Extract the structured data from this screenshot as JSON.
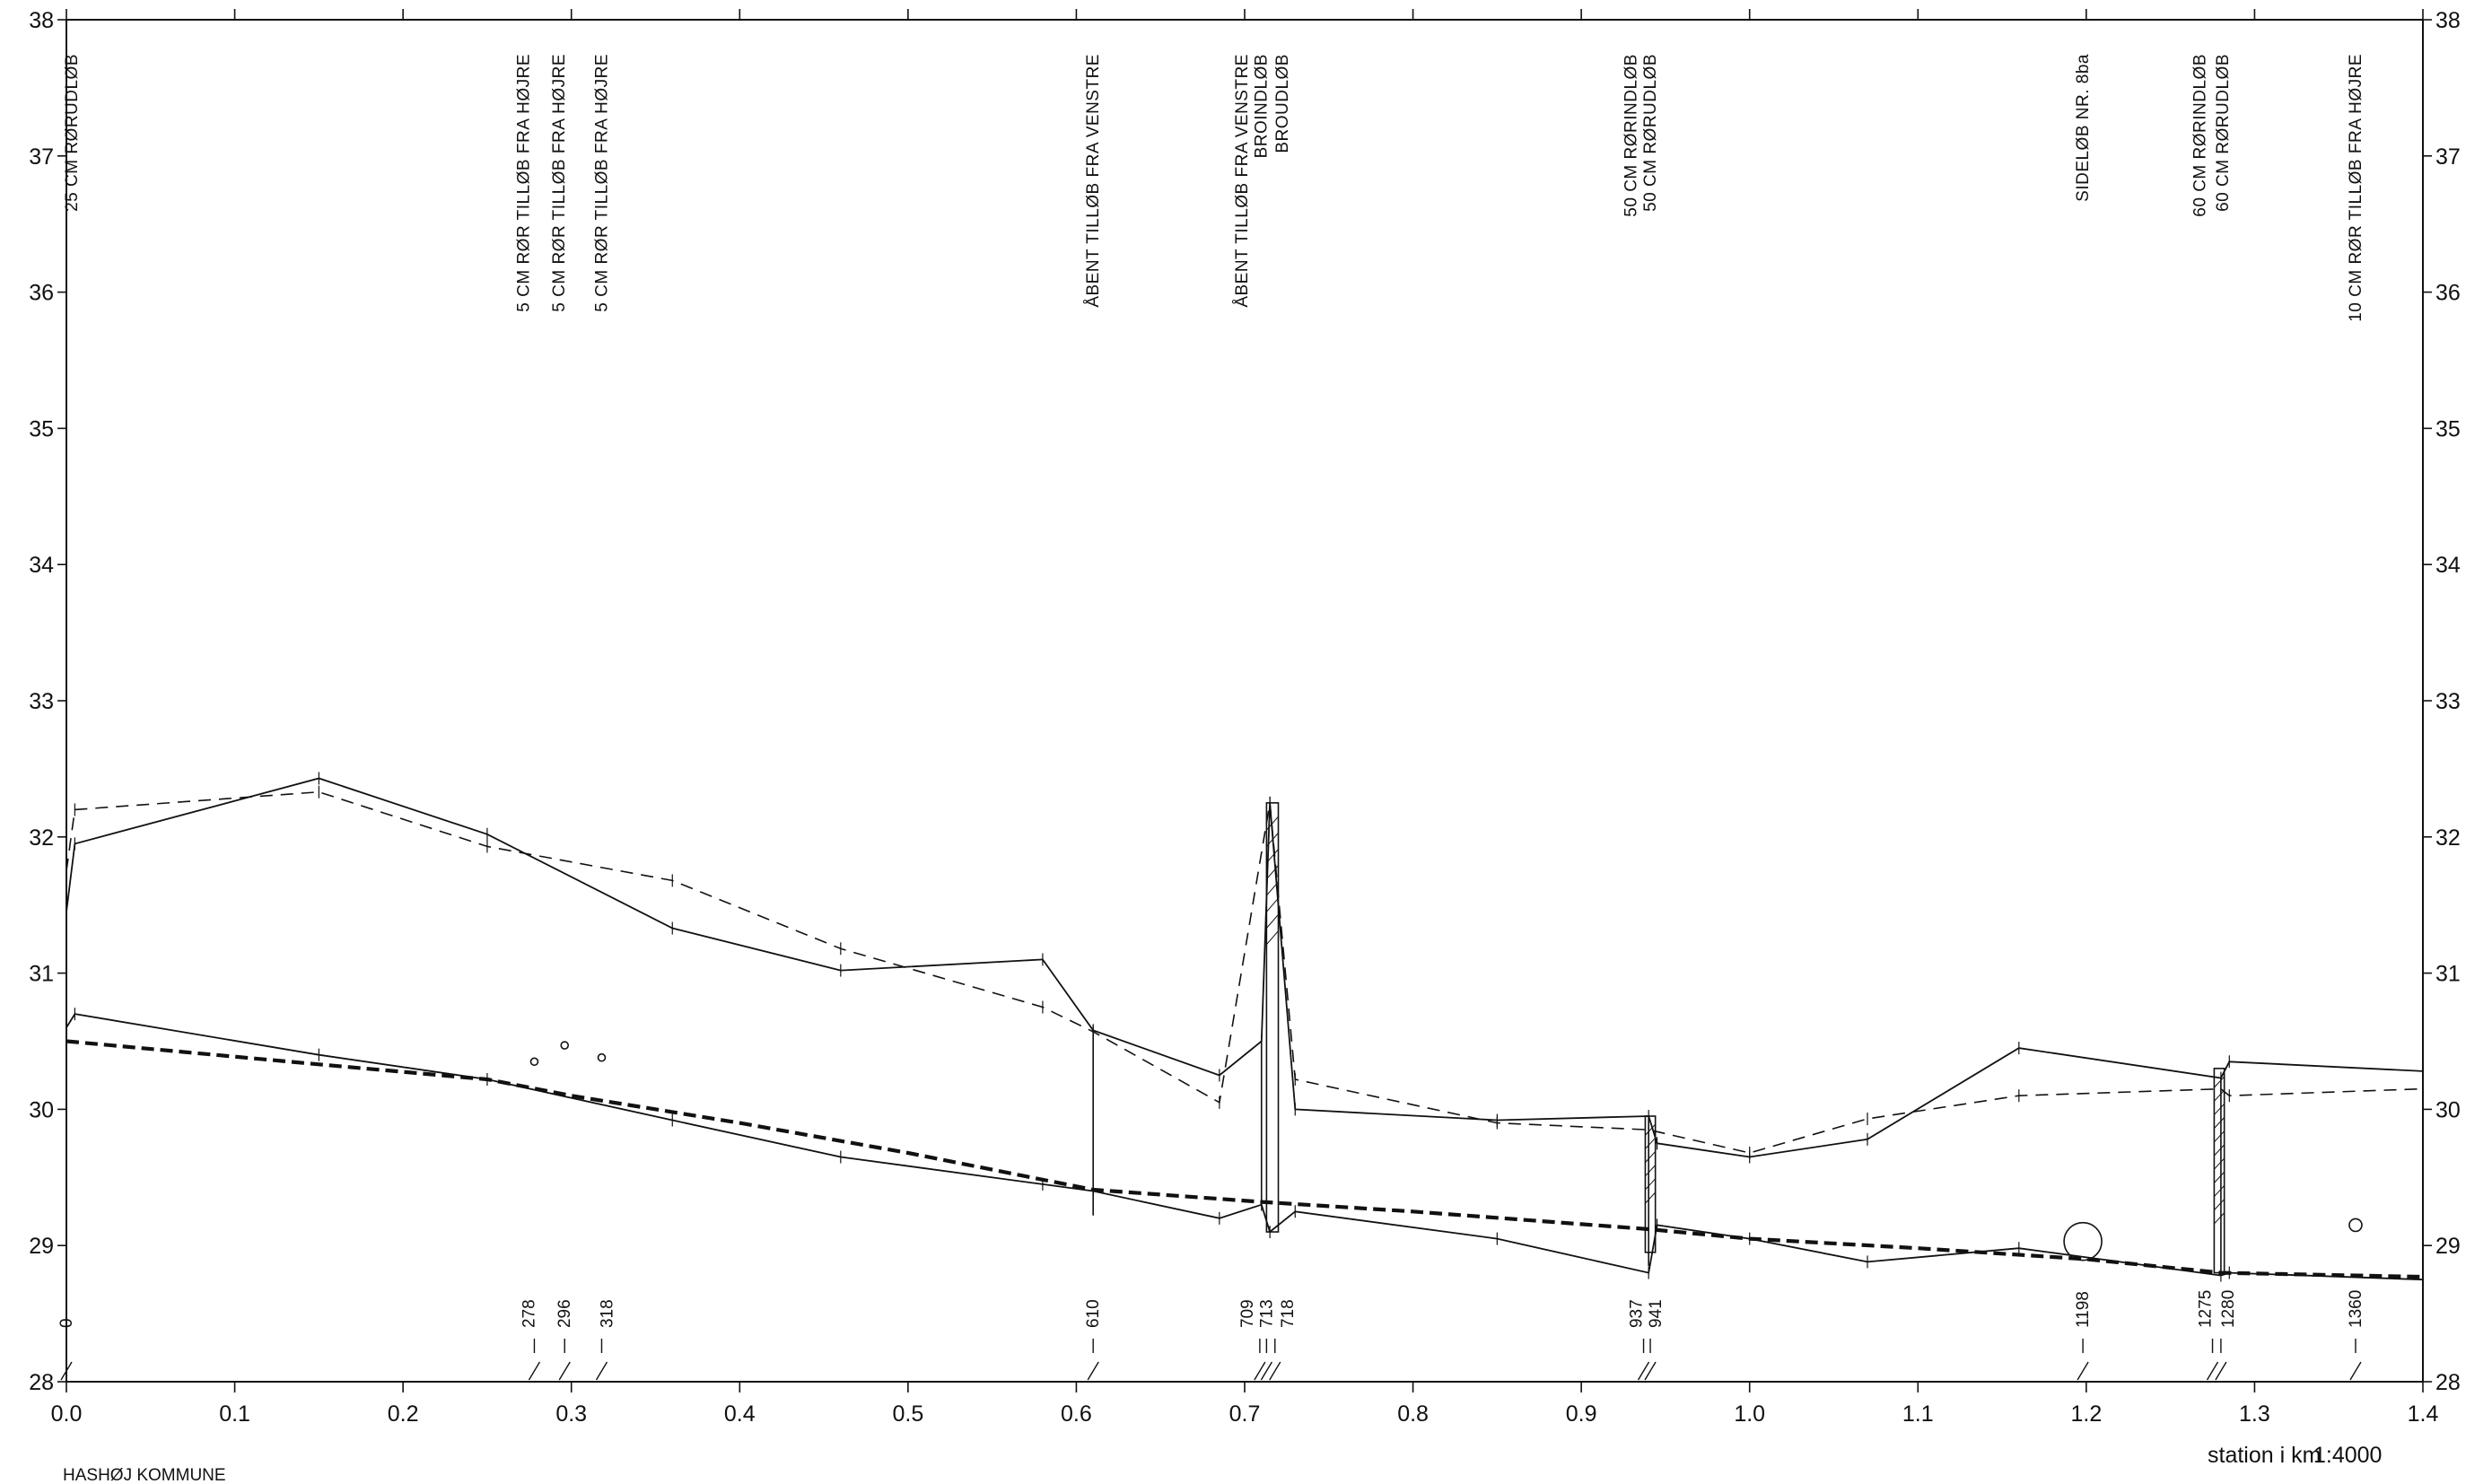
{
  "chart_data": {
    "type": "line",
    "scale": "1:4000",
    "xlabel": "station i km",
    "footer_text": "HASHØJ KOMMUNE",
    "xlim": [
      0.0,
      1.4
    ],
    "ylim": [
      28,
      38
    ],
    "x_ticks": [
      0.0,
      0.1,
      0.2,
      0.3,
      0.4,
      0.5,
      0.6,
      0.7,
      0.8,
      0.9,
      1.0,
      1.1,
      1.2,
      1.3,
      1.4
    ],
    "x_tick_labels": [
      "0.0",
      "0.1",
      "0.2",
      "0.3",
      "0.4",
      "0.5",
      "0.6",
      "0.7",
      "0.8",
      "0.9",
      "1.0",
      "1.1",
      "1.2",
      "1.3",
      "1.4"
    ],
    "y_ticks": [
      28,
      29,
      30,
      31,
      32,
      33,
      34,
      35,
      36,
      37,
      38
    ],
    "y_tick_labels": [
      "28",
      "29",
      "30",
      "31",
      "32",
      "33",
      "34",
      "35",
      "36",
      "37",
      "38"
    ],
    "series": [
      {
        "style": "solid",
        "values": [
          [
            0.0,
            31.45
          ],
          [
            0.005,
            31.95
          ],
          [
            0.15,
            32.43
          ],
          [
            0.25,
            32.02
          ],
          [
            0.36,
            31.33
          ],
          [
            0.46,
            31.02
          ],
          [
            0.58,
            31.1
          ],
          [
            0.61,
            30.58
          ],
          [
            0.685,
            30.25
          ],
          [
            0.71,
            30.5
          ],
          [
            0.715,
            32.25
          ],
          [
            0.73,
            30.0
          ],
          [
            0.85,
            29.92
          ],
          [
            0.94,
            29.95
          ],
          [
            0.945,
            29.75
          ],
          [
            1.0,
            29.65
          ],
          [
            1.07,
            29.78
          ],
          [
            1.16,
            30.45
          ],
          [
            1.28,
            30.23
          ],
          [
            1.285,
            30.35
          ],
          [
            1.4,
            30.28
          ]
        ]
      },
      {
        "style": "dashed",
        "values": [
          [
            0.0,
            31.75
          ],
          [
            0.005,
            32.2
          ],
          [
            0.15,
            32.33
          ],
          [
            0.25,
            31.93
          ],
          [
            0.36,
            31.68
          ],
          [
            0.46,
            31.18
          ],
          [
            0.58,
            30.75
          ],
          [
            0.61,
            30.57
          ],
          [
            0.685,
            30.05
          ],
          [
            0.715,
            32.25
          ],
          [
            0.73,
            30.22
          ],
          [
            0.85,
            29.9
          ],
          [
            0.94,
            29.85
          ],
          [
            1.0,
            29.68
          ],
          [
            1.07,
            29.93
          ],
          [
            1.16,
            30.1
          ],
          [
            1.28,
            30.15
          ],
          [
            1.285,
            30.1
          ],
          [
            1.4,
            30.15
          ]
        ]
      },
      {
        "style": "solid",
        "values": [
          [
            0.0,
            30.6
          ],
          [
            0.005,
            30.7
          ],
          [
            0.15,
            30.4
          ],
          [
            0.25,
            30.22
          ],
          [
            0.36,
            29.92
          ],
          [
            0.46,
            29.65
          ],
          [
            0.58,
            29.45
          ],
          [
            0.61,
            29.4
          ],
          [
            0.685,
            29.2
          ],
          [
            0.71,
            29.3
          ],
          [
            0.715,
            29.1
          ],
          [
            0.73,
            29.25
          ],
          [
            0.85,
            29.05
          ],
          [
            0.94,
            28.8
          ],
          [
            0.945,
            29.15
          ],
          [
            1.0,
            29.05
          ],
          [
            1.07,
            28.88
          ],
          [
            1.16,
            28.98
          ],
          [
            1.28,
            28.78
          ],
          [
            1.285,
            28.8
          ],
          [
            1.4,
            28.75
          ]
        ]
      },
      {
        "style": "dashed-heavy",
        "values": [
          [
            0.0,
            30.5
          ],
          [
            0.15,
            30.33
          ],
          [
            0.25,
            30.22
          ],
          [
            0.3,
            30.1
          ],
          [
            0.4,
            29.9
          ],
          [
            0.5,
            29.68
          ],
          [
            0.61,
            29.41
          ],
          [
            0.71,
            29.32
          ],
          [
            0.8,
            29.25
          ],
          [
            0.94,
            29.12
          ],
          [
            1.0,
            29.05
          ],
          [
            1.1,
            28.98
          ],
          [
            1.2,
            28.9
          ],
          [
            1.28,
            28.8
          ],
          [
            1.4,
            28.77
          ]
        ]
      }
    ],
    "stations": [
      {
        "km": 0.0,
        "label": "0"
      },
      {
        "km": 0.278,
        "label": "278"
      },
      {
        "km": 0.296,
        "label": "296"
      },
      {
        "km": 0.318,
        "label": "318"
      },
      {
        "km": 0.61,
        "label": "610"
      },
      {
        "km": 0.709,
        "label": "709"
      },
      {
        "km": 0.713,
        "label": "713"
      },
      {
        "km": 0.718,
        "label": "718"
      },
      {
        "km": 0.937,
        "label": "937"
      },
      {
        "km": 0.941,
        "label": "941"
      },
      {
        "km": 1.198,
        "label": "1198"
      },
      {
        "km": 1.275,
        "label": "1275"
      },
      {
        "km": 1.28,
        "label": "1280"
      },
      {
        "km": 1.36,
        "label": "1360"
      }
    ],
    "annotations": [
      {
        "km": 0.0,
        "text": "25 CM RØRUDLØB"
      },
      {
        "km": 0.278,
        "text": "5 CM RØR TILLØB FRA HØJRE"
      },
      {
        "km": 0.296,
        "text": "5 CM RØR TILLØB FRA HØJRE"
      },
      {
        "km": 0.318,
        "text": "5 CM RØR TILLØB FRA HØJRE"
      },
      {
        "km": 0.61,
        "text": "ÅBENT TILLØB FRA VENSTRE"
      },
      {
        "km": 0.709,
        "text": "ÅBENT TILLØB FRA VENSTRE"
      },
      {
        "km": 0.713,
        "text": "BROINDLØB"
      },
      {
        "km": 0.718,
        "text": "BROUDLØB"
      },
      {
        "km": 0.937,
        "text": "50 CM RØRINDLØB"
      },
      {
        "km": 0.941,
        "text": "50 CM RØRUDLØB"
      },
      {
        "km": 1.198,
        "text": "SIDELØB NR. 8ba"
      },
      {
        "km": 1.275,
        "text": "60 CM RØRINDLØB"
      },
      {
        "km": 1.28,
        "text": "60 CM RØRUDLØB"
      },
      {
        "km": 1.36,
        "text": "10 CM RØR TILLØB FRA HØJRE"
      }
    ],
    "circle_markers": [
      {
        "km": 0.278,
        "y": 30.35,
        "size": "small"
      },
      {
        "km": 0.296,
        "y": 30.47,
        "size": "small"
      },
      {
        "km": 0.318,
        "y": 30.38,
        "size": "small"
      },
      {
        "km": 1.198,
        "y": 29.03,
        "size": "large"
      },
      {
        "km": 1.36,
        "y": 29.15,
        "size": "medium"
      }
    ]
  }
}
